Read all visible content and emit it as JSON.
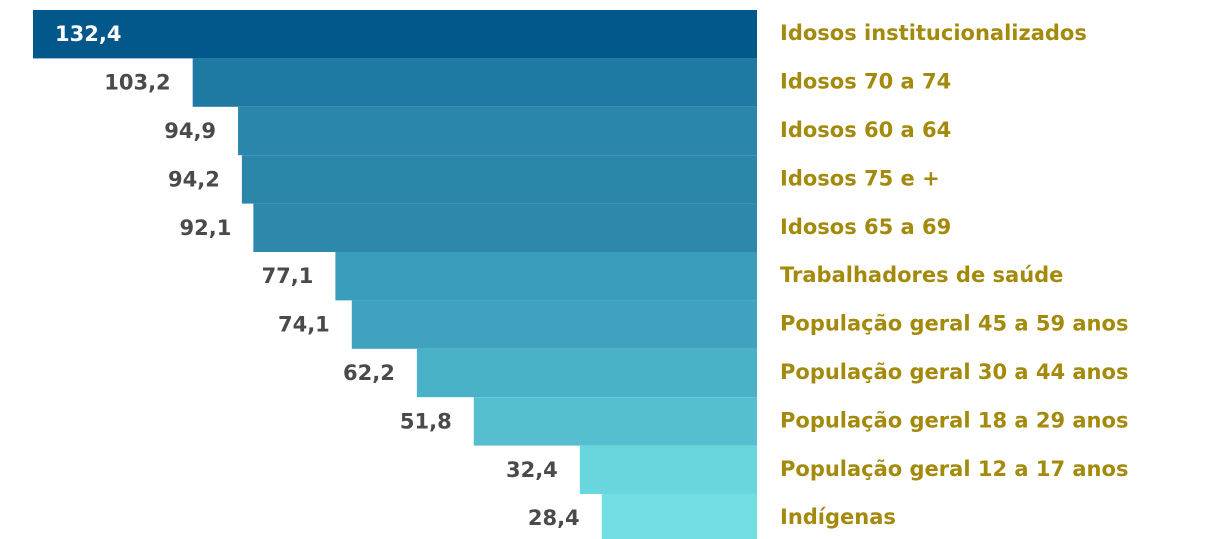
{
  "chart_data": {
    "type": "bar",
    "orientation": "horizontal",
    "categories": [
      "Idosos institucionalizados",
      "Idosos 70 a 74",
      "Idosos 60 a 64",
      "Idosos 75 e +",
      "Idosos 65 a 69",
      "Trabalhadores de saúde",
      "População geral 45 a 59 anos",
      "População geral 30 a 44 anos",
      "População geral 18 a 29 anos",
      "População geral 12 a 17 anos",
      "Indígenas"
    ],
    "values": [
      132.4,
      103.2,
      94.9,
      94.2,
      92.1,
      77.1,
      74.1,
      62.2,
      51.8,
      32.4,
      28.4
    ],
    "value_labels": [
      "132,4",
      "103,2",
      "94,9",
      "94,2",
      "92,1",
      "77,1",
      "74,1",
      "62,2",
      "51,8",
      "32,4",
      "28,4"
    ],
    "colors": [
      "#02578b",
      "#1f7aa3",
      "#2a86aa",
      "#2b87aa",
      "#2d88ab",
      "#3a9dbb",
      "#40a2be",
      "#4ab2c6",
      "#56bfcf",
      "#69d6dd",
      "#72dee2"
    ]
  }
}
